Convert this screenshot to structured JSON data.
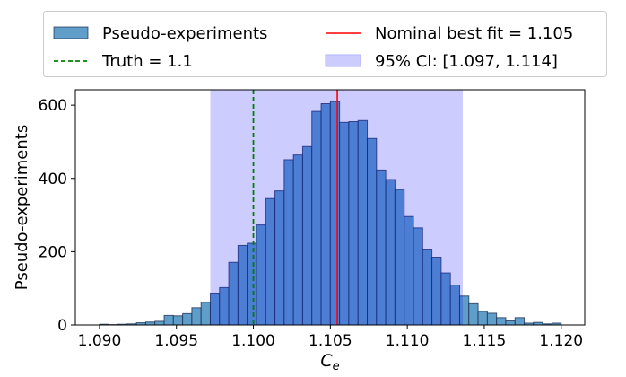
{
  "chart_data": {
    "type": "bar",
    "title": "",
    "xlabel": "C",
    "xlabel_sub": "e",
    "ylabel": "Pseudo-experiments",
    "xlim": [
      1.08843,
      1.12153
    ],
    "ylim": [
      0,
      642
    ],
    "grid": false,
    "bin_start": 1.09,
    "bin_width": 0.0006,
    "values": [
      2,
      1,
      2,
      3,
      6,
      8,
      10,
      26,
      25,
      31,
      47,
      62,
      87,
      102,
      171,
      217,
      223,
      273,
      345,
      366,
      451,
      464,
      487,
      583,
      604,
      610,
      553,
      555,
      558,
      509,
      423,
      397,
      370,
      296,
      265,
      207,
      185,
      142,
      109,
      79,
      58,
      37,
      32,
      20,
      11,
      20,
      5,
      7,
      3,
      5
    ],
    "x_ticks": [
      "1.090",
      "1.095",
      "1.100",
      "1.105",
      "1.110",
      "1.115",
      "1.120"
    ],
    "x_tick_values": [
      1.09,
      1.095,
      1.1,
      1.105,
      1.11,
      1.115,
      1.12
    ],
    "y_ticks": [
      "0",
      "200",
      "400",
      "600"
    ],
    "y_tick_values": [
      0,
      200,
      400,
      600
    ],
    "truth": 1.1,
    "best_fit": 1.10545,
    "ci": [
      1.0972,
      1.1136
    ],
    "legend_placement": "top (outside, above plot)",
    "legend": [
      {
        "label": "Pseudo-experiments",
        "kind": "patch"
      },
      {
        "label": "Nominal best fit = 1.105",
        "kind": "line-red"
      },
      {
        "label": "Truth = 1.1",
        "kind": "line-green-dashed"
      },
      {
        "label": "95% CI: [1.097, 1.114]",
        "kind": "patch-ci"
      }
    ],
    "colors": {
      "bar": "#5f9ec8",
      "bar_edge": "#1a2a50",
      "ci": "#0000ff",
      "truth": "#008000",
      "best_fit": "#ff0000"
    }
  }
}
